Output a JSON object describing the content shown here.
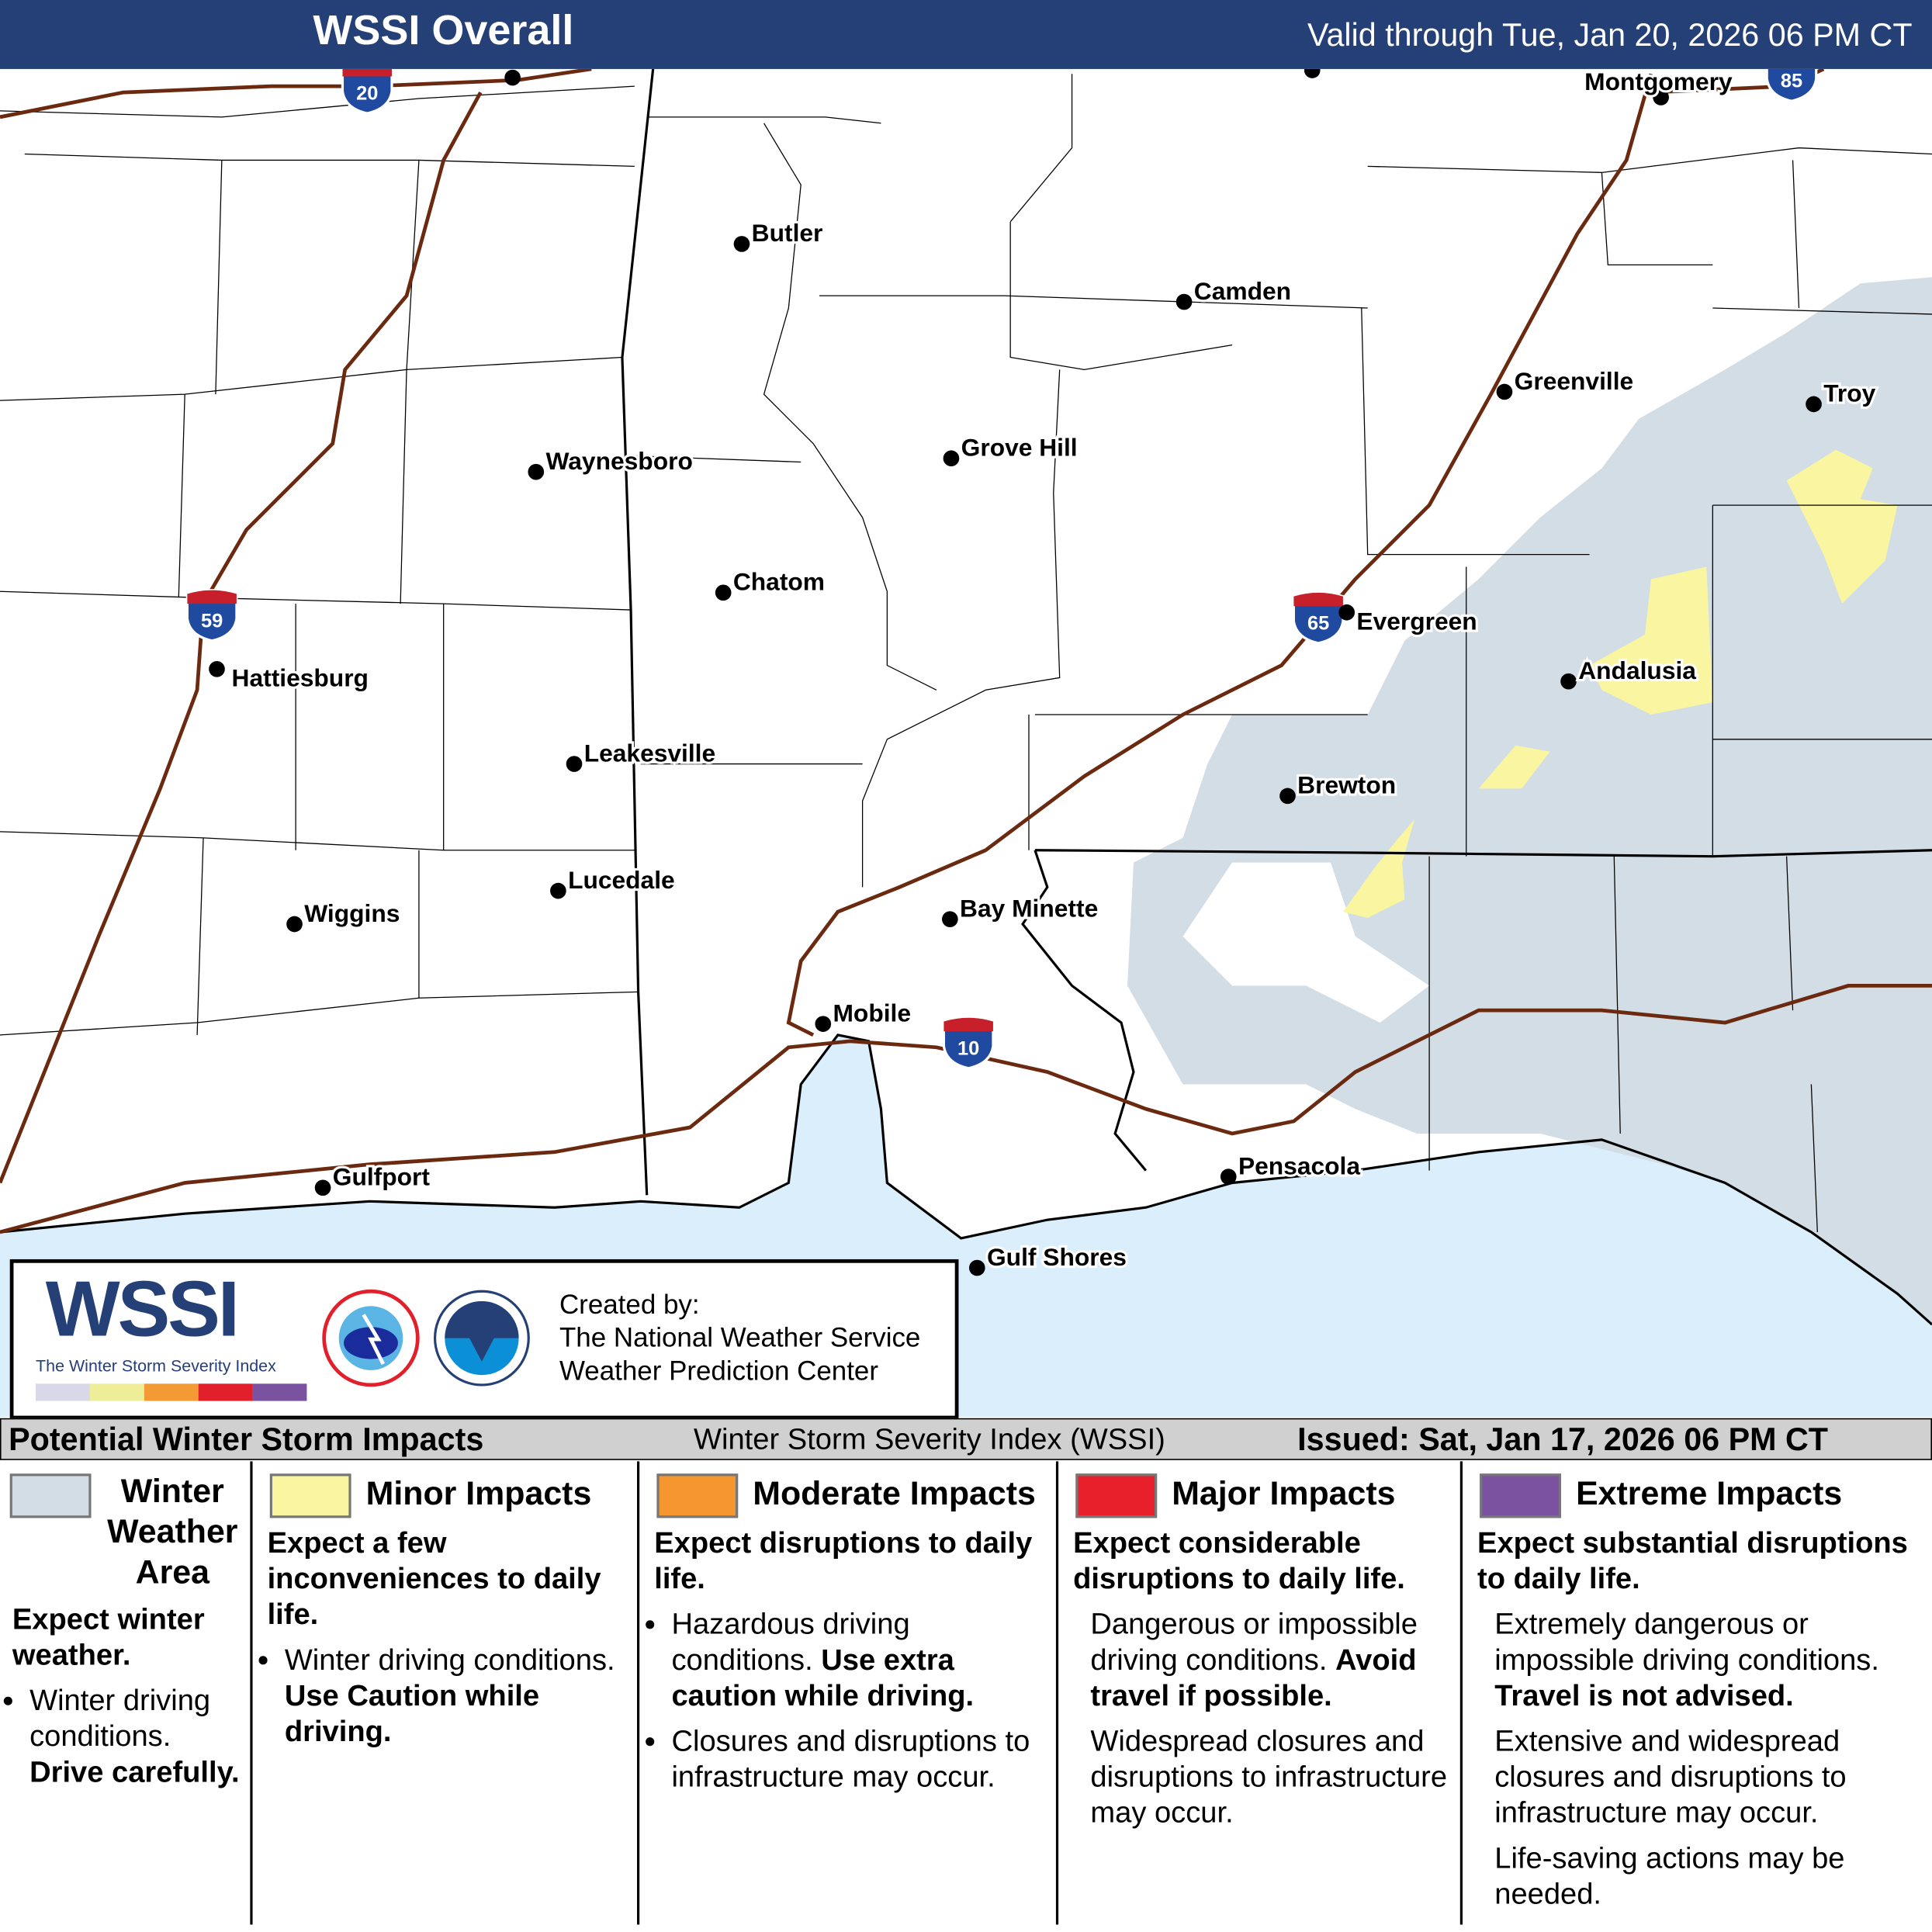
{
  "header": {
    "title": "WSSI Overall",
    "valid": "Valid through Tue, Jan 20, 2026 06 PM CT"
  },
  "map": {
    "colors": {
      "land": "#ffffff",
      "water": "#dbeefc",
      "winter_weather_area": "#d2dde6",
      "minor": "#f9f5a0",
      "roads": "#6b2a10",
      "state_lines": "#000000"
    },
    "cities": [
      "Montgomery",
      "Butler",
      "Camden",
      "Greenville",
      "Troy",
      "Grove Hill",
      "Waynesboro",
      "Chatom",
      "Evergreen",
      "Hattiesburg",
      "Andalusia",
      "Leakesville",
      "Brewton",
      "Lucedale",
      "Bay Minette",
      "Wiggins",
      "Mobile",
      "Gulfport",
      "Pensacola",
      "Gulf Shores"
    ],
    "interstates": [
      "20",
      "85",
      "59",
      "65",
      "10"
    ]
  },
  "credit": {
    "logo_text": "WSSI",
    "logo_sub": "The Winter Storm Severity Index",
    "line1": "Created by:",
    "line2": "The National Weather Service",
    "line3": "Weather Prediction Center",
    "logo_colors": [
      "#d8d8e8",
      "#eeee98",
      "#f49a34",
      "#e2202b",
      "#7a52a0"
    ]
  },
  "legend": {
    "title": "Potential Winter Storm Impacts",
    "subtitle": "Winter Storm Severity Index (WSSI)",
    "issued": "Issued: Sat, Jan 17, 2026 06 PM CT",
    "columns": [
      {
        "color": "#d2dde6",
        "heading": "Winter Weather Area",
        "lead": "Expect winter weather.",
        "bullets": [
          {
            "text": "Winter driving conditions. ",
            "bold": "Drive carefully."
          }
        ]
      },
      {
        "color": "#f9f5a0",
        "heading": "Minor Impacts",
        "lead": "Expect a few inconveniences to daily life.",
        "bullets": [
          {
            "text": "Winter driving conditions. ",
            "bold": "Use Caution while driving."
          }
        ]
      },
      {
        "color": "#f6962f",
        "heading": "Moderate Impacts",
        "lead": "Expect disruptions to daily life.",
        "bullets": [
          {
            "text": "Hazardous driving conditions. ",
            "bold": "Use extra caution while driving."
          },
          {
            "text": "Closures and disruptions to infrastructure may occur.",
            "bold": ""
          }
        ]
      },
      {
        "color": "#e8202b",
        "heading": "Major Impacts",
        "lead": "Expect considerable disruptions to daily life.",
        "paras": [
          {
            "text": "Dangerous or impossible driving conditions. ",
            "bold": "Avoid travel if possible."
          },
          {
            "text": "Widespread closures and disruptions to infrastructure may occur.",
            "bold": ""
          }
        ]
      },
      {
        "color": "#7a52a0",
        "heading": "Extreme Impacts",
        "lead": "Expect substantial disruptions to daily life.",
        "paras": [
          {
            "text": "Extremely dangerous or impossible driving conditions. ",
            "bold": "Travel is not advised."
          },
          {
            "text": "Extensive and widespread closures and disruptions to infrastructure may occur.",
            "bold": ""
          },
          {
            "text": "Life-saving actions may be needed.",
            "bold": ""
          }
        ]
      }
    ]
  }
}
